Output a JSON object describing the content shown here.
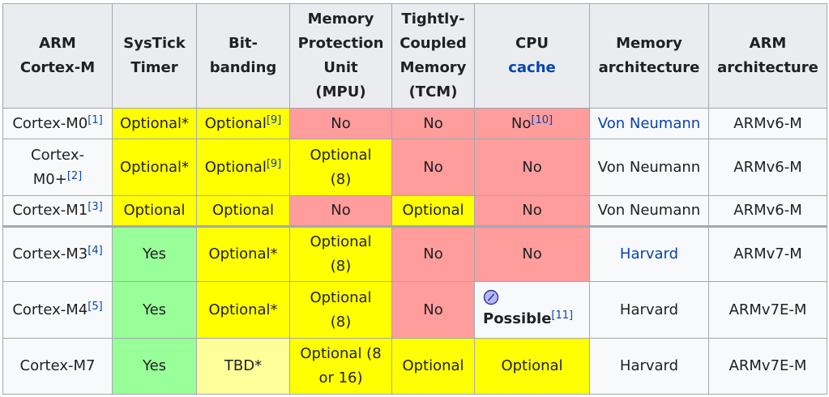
{
  "headers": [
    [
      "ARM",
      "Cortex-M"
    ],
    [
      "SysTick",
      "Timer"
    ],
    [
      "Bit-",
      "banding"
    ],
    [
      "Memory",
      "Protection",
      "Unit",
      "(MPU)"
    ],
    [
      "Tightly-",
      "Coupled",
      "Memory",
      "(TCM)"
    ],
    [
      "CPU"
    ],
    [
      "Memory",
      "architecture"
    ],
    [
      "ARM",
      "architecture"
    ]
  ],
  "cpu_cache_link": "cache",
  "rows": [
    {
      "core": [
        "Cortex-M0"
      ],
      "core_ref": "[1]",
      "systick": "Optional*",
      "bitband": "Optional",
      "bitband_ref": "[9]",
      "mpu": [
        "No"
      ],
      "tcm": "No",
      "cache": "No",
      "cache_ref": "[10]",
      "memarch": "Von Neumann",
      "arch": "ARMv6-M"
    },
    {
      "core": [
        "Cortex-",
        "M0+"
      ],
      "core_ref": "[2]",
      "systick": "Optional*",
      "bitband": "Optional",
      "bitband_ref": "[9]",
      "mpu": [
        "Optional",
        "(8)"
      ],
      "tcm": "No",
      "cache": "No",
      "cache_ref": "",
      "memarch": "Von Neumann",
      "arch": "ARMv6-M"
    },
    {
      "core": [
        "Cortex-M1"
      ],
      "core_ref": "[3]",
      "systick": "Optional",
      "bitband": "Optional",
      "bitband_ref": "",
      "mpu": [
        "No"
      ],
      "tcm": "Optional",
      "cache": "No",
      "cache_ref": "",
      "memarch": "Von Neumann",
      "arch": "ARMv6-M"
    },
    {
      "core": [
        "Cortex-M3"
      ],
      "core_ref": "[4]",
      "systick": "Yes",
      "bitband": "Optional*",
      "bitband_ref": "",
      "mpu": [
        "Optional",
        "(8)"
      ],
      "tcm": "No",
      "cache": "No",
      "cache_ref": "",
      "memarch": "Harvard",
      "arch": "ARMv7-M"
    },
    {
      "core": [
        "Cortex-M4"
      ],
      "core_ref": "[5]",
      "systick": "Yes",
      "bitband": "Optional*",
      "bitband_ref": "",
      "mpu": [
        "Optional",
        "(8)"
      ],
      "tcm": "No",
      "cache": "Possible",
      "cache_ref": "[11]",
      "memarch": "Harvard",
      "arch": "ARMv7E-M"
    },
    {
      "core": [
        "Cortex-M7"
      ],
      "core_ref": "",
      "systick": "Yes",
      "bitband": "TBD*",
      "bitband_ref": "",
      "mpu": [
        "Optional (8",
        "or 16)"
      ],
      "tcm": "Optional",
      "cache": "Optional",
      "cache_ref": "",
      "memarch": "Harvard",
      "arch": "ARMv7E-M"
    }
  ],
  "icons": {
    "possible": "pencil-circle-icon"
  }
}
